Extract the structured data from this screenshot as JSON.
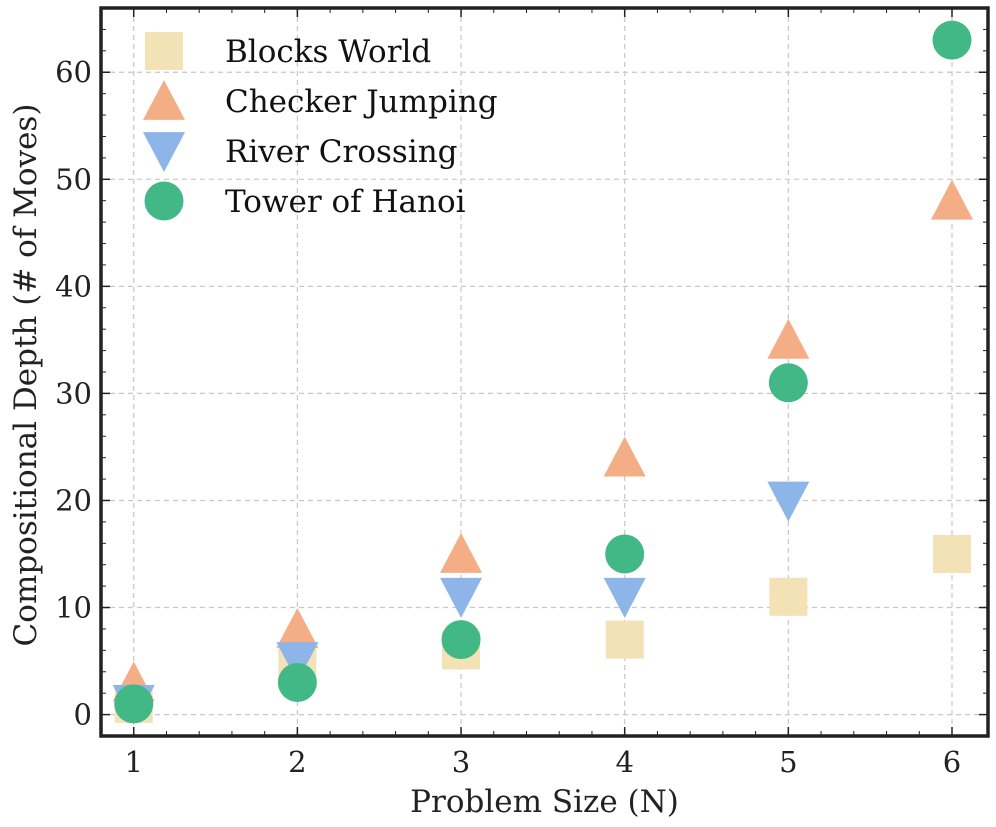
{
  "chart_data": {
    "type": "scatter",
    "title": "",
    "xlabel": "Problem Size (N)",
    "ylabel": "Compositional Depth (# of Moves)",
    "xlim": [
      0.8,
      6.22
    ],
    "ylim": [
      -2,
      66
    ],
    "xticks": [
      1,
      2,
      3,
      4,
      5,
      6
    ],
    "yticks": [
      0,
      10,
      20,
      30,
      40,
      50,
      60
    ],
    "grid": true,
    "legend_position": "top-left",
    "series": [
      {
        "name": "Blocks World",
        "marker": "square",
        "color": "#f3e2b6",
        "x": [
          1,
          2,
          3,
          4,
          5,
          6
        ],
        "y": [
          1,
          5,
          6,
          7,
          11,
          15
        ]
      },
      {
        "name": "Checker Jumping",
        "marker": "triangle-up",
        "color": "#f4ae86",
        "x": [
          1,
          2,
          3,
          4,
          5,
          6
        ],
        "y": [
          3,
          8,
          15,
          24,
          35,
          48
        ]
      },
      {
        "name": "River Crossing",
        "marker": "triangle-down",
        "color": "#8db5e7",
        "x": [
          1,
          2,
          3,
          4,
          5
        ],
        "y": [
          1,
          5,
          11,
          11,
          20
        ]
      },
      {
        "name": "Tower of Hanoi",
        "marker": "circle",
        "color": "#41b886",
        "x": [
          1,
          2,
          3,
          4,
          5,
          6
        ],
        "y": [
          1,
          3,
          7,
          15,
          31,
          63
        ]
      }
    ]
  }
}
